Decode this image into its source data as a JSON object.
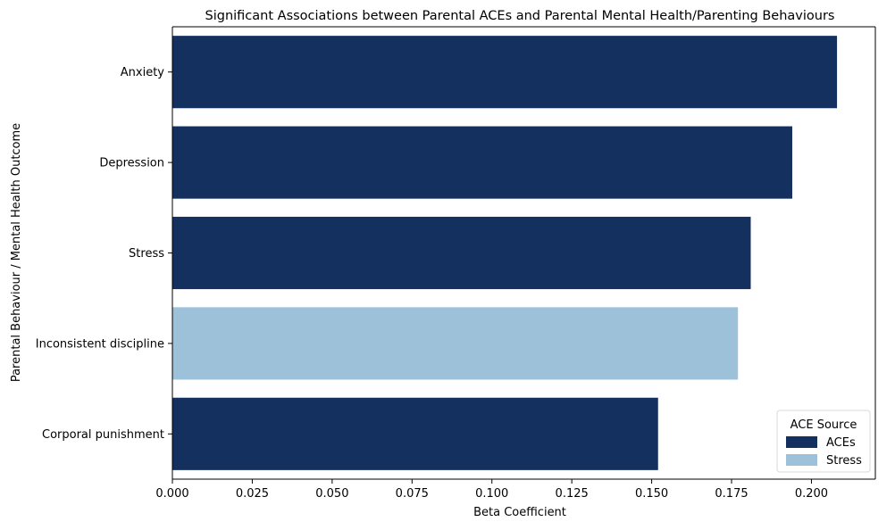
{
  "chart_data": {
    "type": "bar",
    "orientation": "horizontal",
    "title": "Significant Associations between Parental ACEs and Parental Mental Health/Parenting Behaviours",
    "xlabel": "Beta Coefficient",
    "ylabel": "Parental Behaviour / Mental Health Outcome",
    "xlim": [
      0,
      0.22
    ],
    "xticks": [
      "0.000",
      "0.025",
      "0.050",
      "0.075",
      "0.100",
      "0.125",
      "0.150",
      "0.175",
      "0.200"
    ],
    "categories": [
      "Anxiety",
      "Depression",
      "Stress",
      "Inconsistent discipline",
      "Corporal punishment"
    ],
    "values": [
      0.208,
      0.194,
      0.181,
      0.177,
      0.152
    ],
    "source": [
      "ACEs",
      "ACEs",
      "ACEs",
      "Stress",
      "ACEs"
    ],
    "grid": false,
    "legend": {
      "title": "ACE Source",
      "placement": "bottom-right",
      "entries": [
        {
          "label": "ACEs",
          "color": "#14305f"
        },
        {
          "label": "Stress",
          "color": "#9ec1da"
        }
      ]
    }
  }
}
